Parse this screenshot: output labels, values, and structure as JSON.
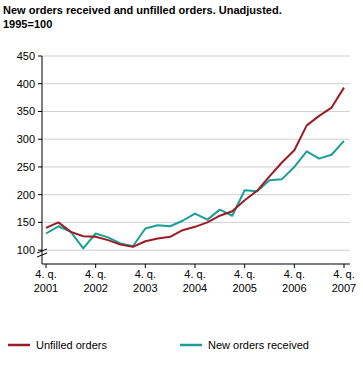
{
  "chart_data": {
    "type": "line",
    "title": "New orders received and unfilled orders. Unadjusted.",
    "subtitle": "1995=100",
    "categories": [
      "4. q. 2001",
      null,
      null,
      null,
      "4. q. 2002",
      null,
      null,
      null,
      "4. q. 2003",
      null,
      null,
      null,
      "4. q. 2004",
      null,
      null,
      null,
      "4. q. 2005",
      null,
      null,
      null,
      "4. q. 2006",
      null,
      null,
      null,
      "4. q. 2007"
    ],
    "series": [
      {
        "name": "Unfilled orders",
        "color": "#9b1c24",
        "values": [
          140,
          150,
          133,
          125,
          124,
          118,
          110,
          106,
          116,
          121,
          124,
          136,
          142,
          150,
          162,
          170,
          190,
          207,
          233,
          258,
          280,
          325,
          342,
          357,
          393
        ]
      },
      {
        "name": "New orders received",
        "color": "#1a9e9a",
        "values": [
          130,
          143,
          133,
          103,
          130,
          123,
          112,
          107,
          139,
          145,
          143,
          153,
          166,
          155,
          173,
          162,
          208,
          206,
          226,
          228,
          250,
          278,
          265,
          272,
          297
        ]
      }
    ],
    "ylim": [
      75,
      450
    ],
    "yticks": [
      100,
      150,
      200,
      250,
      300,
      350,
      400,
      450
    ],
    "grid": true,
    "legend": "bottom"
  }
}
